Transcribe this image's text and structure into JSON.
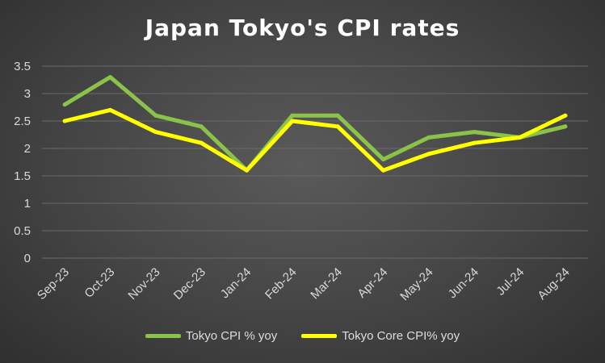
{
  "chart_data": {
    "type": "line",
    "title": "Japan Tokyo's CPI rates",
    "categories": [
      "Sep-23",
      "Oct-23",
      "Nov-23",
      "Dec-23",
      "Jan-24",
      "Feb-24",
      "Mar-24",
      "Apr-24",
      "May-24",
      "Jun-24",
      "Jul-24",
      "Aug-24"
    ],
    "series": [
      {
        "name": "Tokyo CPI % yoy",
        "color": "#8bc34a",
        "values": [
          2.8,
          3.3,
          2.6,
          2.4,
          1.6,
          2.6,
          2.6,
          1.8,
          2.2,
          2.3,
          2.2,
          2.4
        ]
      },
      {
        "name": "Tokyo Core CPI% yoy",
        "color": "#ffff00",
        "values": [
          2.5,
          2.7,
          2.3,
          2.1,
          1.6,
          2.5,
          2.4,
          1.6,
          1.9,
          2.1,
          2.2,
          2.6
        ]
      }
    ],
    "yticks": [
      "0",
      "0.5",
      "1",
      "1.5",
      "2",
      "2.5",
      "3",
      "3.5"
    ],
    "ylim": [
      0,
      3.5
    ],
    "xlabel": "",
    "ylabel": "",
    "grid": true,
    "legend_position": "bottom"
  }
}
